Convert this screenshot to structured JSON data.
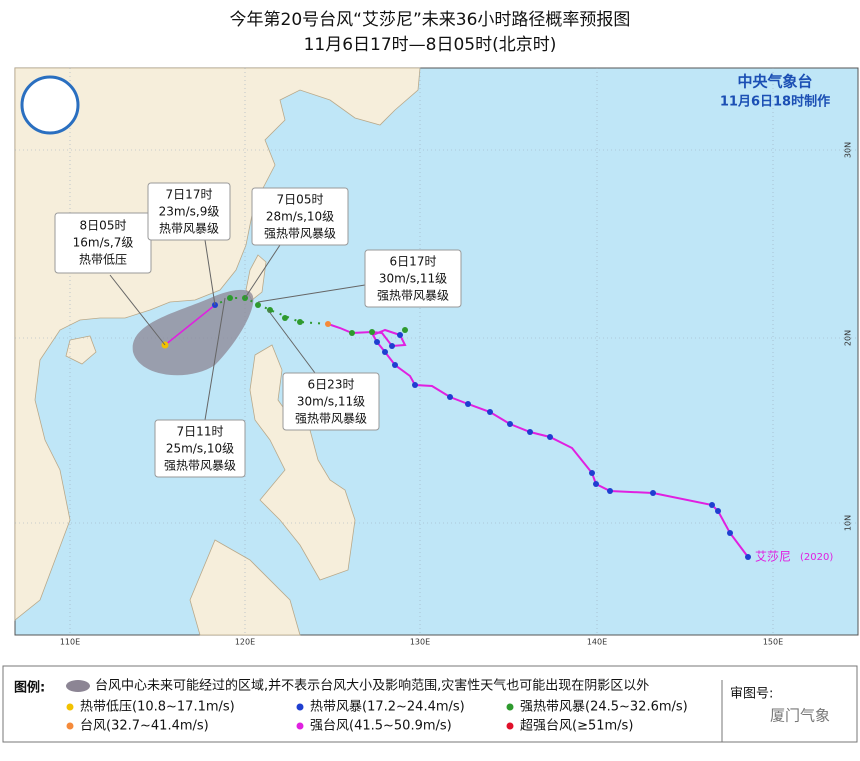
{
  "header": {
    "title": "今年第20号台风“艾莎尼”未来36小时路径概率预报图",
    "subtitle": "11月6日17时—8日05时(北京时)"
  },
  "agency": {
    "name": "中央气象台",
    "issued": "11月6日18时制作"
  },
  "callouts": [
    {
      "time": "8日05时",
      "wind": "16m/s,7级",
      "level": "热带低压"
    },
    {
      "time": "7日17时",
      "wind": "23m/s,9级",
      "level": "热带风暴级"
    },
    {
      "time": "7日05时",
      "wind": "28m/s,10级",
      "level": "强热带风暴级"
    },
    {
      "time": "6日17时",
      "wind": "30m/s,11级",
      "level": "强热带风暴级"
    },
    {
      "time": "6日23时",
      "wind": "30m/s,11级",
      "level": "强热带风暴级"
    },
    {
      "time": "7日11时",
      "wind": "25m/s,10级",
      "level": "强热带风暴级"
    }
  ],
  "storm": {
    "name": "艾莎尼",
    "year": "(2020)"
  },
  "axes": {
    "longitudes": [
      "110E",
      "120E",
      "130E",
      "140E",
      "150E"
    ],
    "latitudes": [
      "30N",
      "20N",
      "10N"
    ]
  },
  "legend": {
    "title": "图例:",
    "area": "台风中心未来可能经过的区域,并不表示台风大小及影响范围,灾害性天气也可能出现在阴影区以外",
    "items": [
      {
        "label": "热带低压(10.8~17.1m/s)",
        "color": "#f2c200"
      },
      {
        "label": "热带风暴(17.2~24.4m/s)",
        "color": "#1f3fd0"
      },
      {
        "label": "强热带风暴(24.5~32.6m/s)",
        "color": "#2e9a2e"
      },
      {
        "label": "台风(32.7~41.4m/s)",
        "color": "#f58a3a"
      },
      {
        "label": "强台风(41.5~50.9m/s)",
        "color": "#e020e0"
      },
      {
        "label": "超强台风(≥51m/s)",
        "color": "#e0102a"
      }
    ]
  },
  "review": {
    "label": "审图号:",
    "watermark": "厦门气象"
  }
}
